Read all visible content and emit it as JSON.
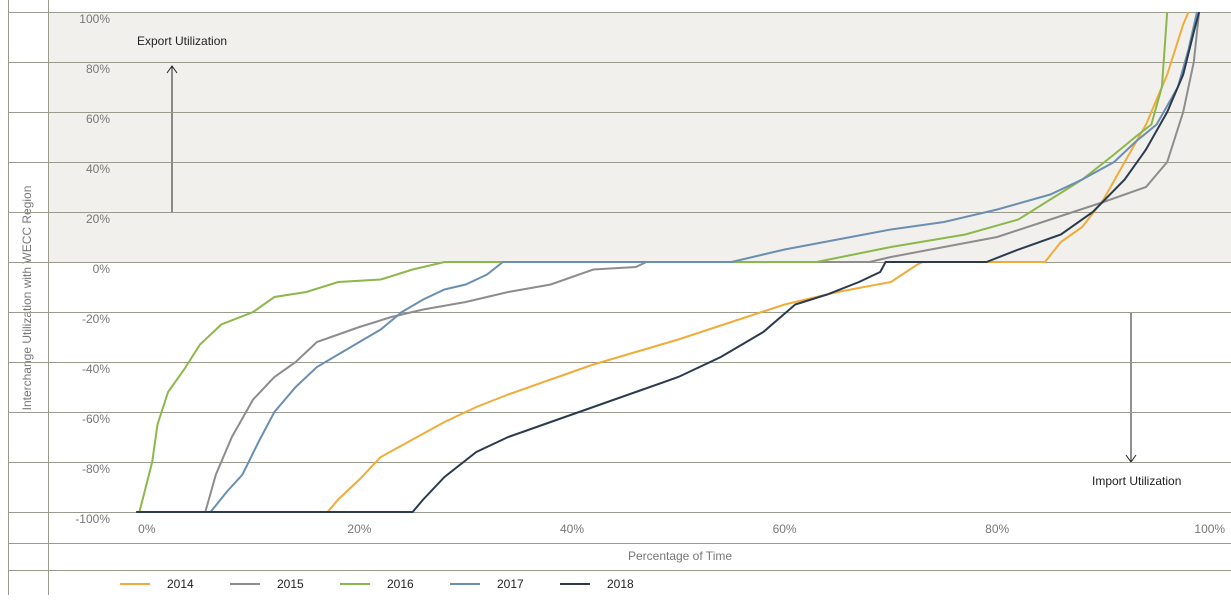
{
  "chart_data": {
    "type": "line",
    "ylabel": "Interchange Utilization with WECC Region",
    "xlabel": "Percentage of Time",
    "annotations": [
      "Export Utilization",
      "Import Utilization"
    ],
    "xlim": [
      -9.3,
      102
    ],
    "ylim": [
      -100,
      100
    ],
    "xticks": [
      {
        "value": 0,
        "label": "0%"
      },
      {
        "value": 20,
        "label": "20%"
      },
      {
        "value": 40,
        "label": "40%"
      },
      {
        "value": 60,
        "label": "60%"
      },
      {
        "value": 80,
        "label": "80%"
      },
      {
        "value": 100,
        "label": "100%"
      }
    ],
    "yticks": [
      {
        "value": -100,
        "label": "-100%"
      },
      {
        "value": -80,
        "label": "-80%"
      },
      {
        "value": -60,
        "label": "-60%"
      },
      {
        "value": -40,
        "label": "-40%"
      },
      {
        "value": -20,
        "label": "-20%"
      },
      {
        "value": 0,
        "label": "0%"
      },
      {
        "value": 20,
        "label": "20%"
      },
      {
        "value": 40,
        "label": "40%"
      },
      {
        "value": 60,
        "label": "60%"
      },
      {
        "value": 80,
        "label": "80%"
      },
      {
        "value": 100,
        "label": "100%"
      }
    ],
    "grid": true,
    "legend": "bottom",
    "export_shading": "#f2f0ec",
    "series": [
      {
        "name": "2014",
        "color": "#f0ac3a",
        "x": [
          -1,
          17,
          18,
          20,
          22,
          25,
          28,
          31,
          34,
          38,
          42,
          46,
          50,
          55,
          60,
          65,
          70,
          72.5,
          73,
          84.5,
          86,
          88,
          90,
          92,
          94,
          96,
          97.5,
          98
        ],
        "values": [
          -100,
          -100,
          -95,
          -87,
          -78,
          -71,
          -64,
          -58,
          -53,
          -47,
          -41,
          -36,
          -31,
          -24,
          -17,
          -12,
          -8,
          -1,
          0,
          0,
          8,
          14,
          25,
          40,
          55,
          75,
          95,
          100
        ]
      },
      {
        "name": "2015",
        "color": "#8d8d8d",
        "x": [
          -1,
          5.5,
          6.5,
          8,
          10,
          12,
          14,
          16,
          18,
          20,
          23,
          26,
          30,
          34,
          38,
          42,
          46,
          47,
          68,
          70,
          75,
          80,
          85,
          90,
          94,
          96,
          97.5,
          98.5,
          99
        ],
        "values": [
          -100,
          -100,
          -85,
          -70,
          -55,
          -46,
          -40,
          -32,
          -29,
          -26,
          -22,
          -19,
          -16,
          -12,
          -9,
          -3,
          -2,
          0,
          0,
          2,
          6,
          10,
          17,
          24,
          30,
          40,
          60,
          80,
          100
        ]
      },
      {
        "name": "2016",
        "color": "#8bb84b",
        "x": [
          -0.7,
          0.5,
          1,
          2,
          3.5,
          5,
          7,
          10,
          12,
          15,
          18,
          22,
          25,
          28,
          63,
          70,
          77,
          82,
          85,
          88,
          91,
          93,
          94.5,
          95.5,
          96
        ],
        "values": [
          -100,
          -80,
          -65,
          -52,
          -43,
          -33,
          -25,
          -20,
          -14,
          -12,
          -8,
          -7,
          -3,
          0,
          0,
          6,
          11,
          17,
          25,
          33,
          43,
          50,
          55,
          70,
          100
        ]
      },
      {
        "name": "2017",
        "color": "#6b8fb1",
        "x": [
          -1,
          6,
          7.5,
          9,
          10.5,
          12,
          14,
          16,
          18,
          20,
          22,
          24,
          26,
          28,
          30,
          32,
          33.5,
          55,
          60,
          65,
          70,
          75,
          80,
          85,
          88,
          91,
          93,
          95,
          97,
          98,
          98.8
        ],
        "values": [
          -100,
          -100,
          -92,
          -85,
          -72,
          -60,
          -50,
          -42,
          -37,
          -32,
          -27,
          -20,
          -15,
          -11,
          -9,
          -5,
          0,
          0,
          5,
          9,
          13,
          16,
          21,
          27,
          33,
          40,
          48,
          55,
          70,
          85,
          100
        ]
      },
      {
        "name": "2018",
        "color": "#2c3a4e",
        "x": [
          -1,
          25,
          26,
          28,
          31,
          34,
          38,
          42,
          46,
          50,
          54,
          58,
          61,
          64,
          67,
          69,
          69.5,
          79,
          82,
          86,
          89,
          92,
          94,
          96,
          97.5,
          98.5,
          99
        ],
        "values": [
          -100,
          -100,
          -95,
          -86,
          -76,
          -70,
          -64,
          -58,
          -52,
          -46,
          -38,
          -28,
          -17,
          -13,
          -8,
          -4,
          0,
          0,
          5,
          11,
          20,
          33,
          45,
          60,
          75,
          92,
          100
        ]
      }
    ]
  }
}
